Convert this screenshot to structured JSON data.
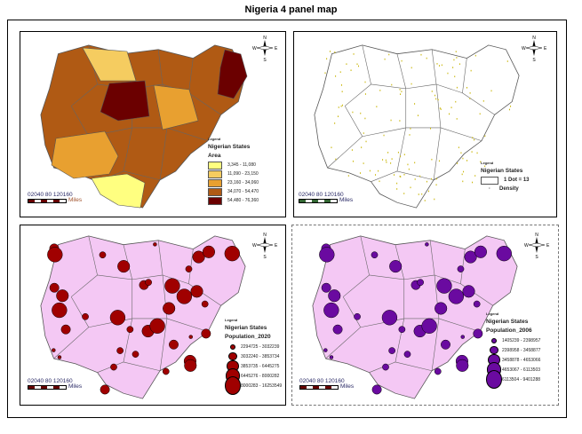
{
  "title": "Nigeria 4 panel map",
  "scale_bar": {
    "ticks": "02040  80  120160",
    "unit": "Miles"
  },
  "north_arrow": {
    "n": "N",
    "s": "S",
    "e": "E",
    "w": "W"
  },
  "panels": [
    {
      "legend": {
        "heading": "Legend",
        "layer": "Nigerian States",
        "field": "Area",
        "classes": [
          {
            "label": "3,345 - 11,080",
            "color": "#ffff80"
          },
          {
            "label": "11,090 - 23,150",
            "color": "#f5cc60"
          },
          {
            "label": "23,160 - 34,060",
            "color": "#e8a030"
          },
          {
            "label": "34,070 - 54,470",
            "color": "#b05a14"
          },
          {
            "label": "54,480 - 76,360",
            "color": "#6b0000"
          }
        ]
      }
    },
    {
      "legend": {
        "heading": "Legend",
        "layer": "Nigerian States",
        "dot_label": "1 Dot = 13",
        "field": "Density",
        "dot_color": "#c8b400"
      }
    },
    {
      "legend": {
        "heading": "Legend",
        "layer": "Nigerian States",
        "field": "Population_2020",
        "color": "#a00000",
        "classes": [
          "2294725 - 3032239",
          "3032240 - 3853734",
          "3853735 - 6445275",
          "6445276 - 8000282",
          "8000283 - 16253549"
        ]
      }
    },
    {
      "legend": {
        "heading": "Legend",
        "layer": "Nigerian States",
        "field": "Population_2006",
        "color": "#6a0aa0",
        "classes": [
          "1405239 - 2398957",
          "2398958 - 3458877",
          "3458878 - 4653066",
          "4653067 - 6113503",
          "6113504 - 9401288"
        ]
      }
    }
  ],
  "colors": {
    "pink_fill": "#f4c8f4",
    "border": "#555555"
  }
}
